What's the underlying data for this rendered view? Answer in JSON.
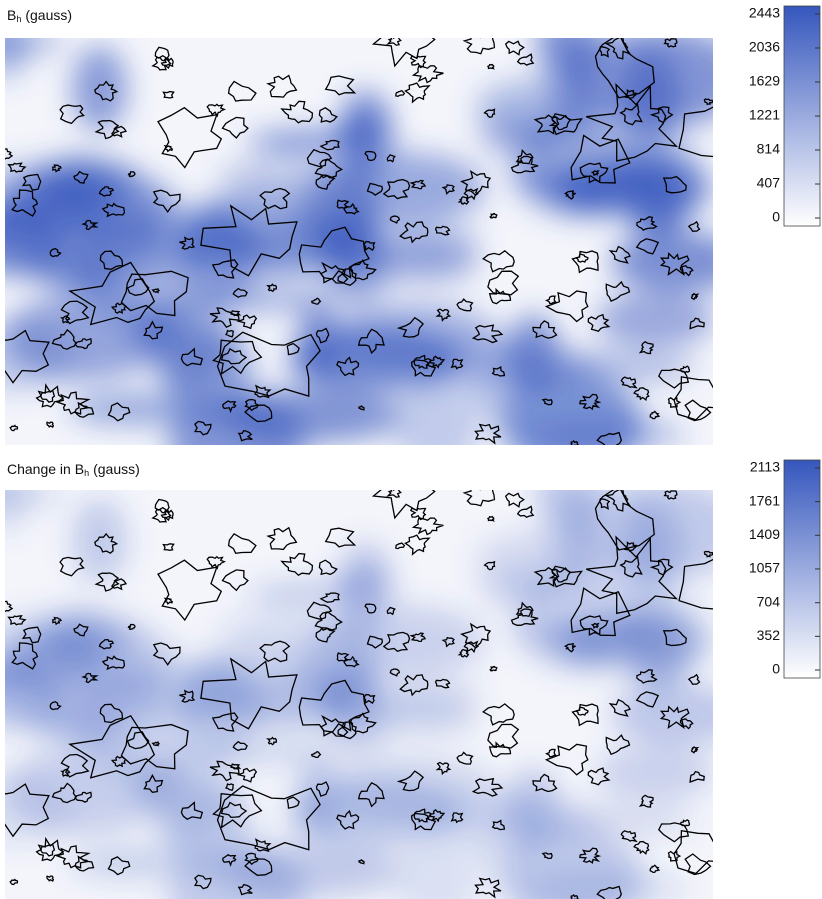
{
  "chart_data": [
    {
      "type": "map",
      "title_parts": [
        "B",
        "h",
        "(gauss)"
      ],
      "colorbar": {
        "ylim": [
          0,
          2443
        ],
        "yticks": [
          0,
          407,
          814,
          1221,
          1629,
          2036,
          2443
        ],
        "colors": [
          "#ffffff",
          "#3556bd"
        ]
      }
    },
    {
      "type": "map",
      "title_parts": [
        "Change in B",
        "h",
        "(gauss)"
      ],
      "colorbar": {
        "ylim": [
          0,
          2113
        ],
        "yticks": [
          0,
          352,
          704,
          1057,
          1409,
          1761,
          2113
        ],
        "colors": [
          "#ffffff",
          "#3556bd"
        ]
      }
    }
  ]
}
